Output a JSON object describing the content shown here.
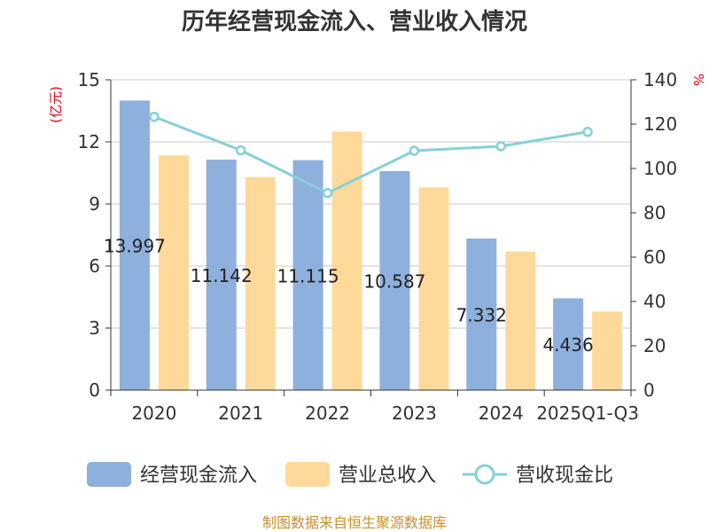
{
  "chart_data": {
    "type": "bar",
    "title": "历年经营现金流入、营业收入情况",
    "categories": [
      "2020",
      "2021",
      "2022",
      "2023",
      "2024",
      "2025Q1-Q3"
    ],
    "y_left": {
      "unit": "(亿元)",
      "range": [
        0,
        15
      ],
      "ticks": [
        "0",
        "3",
        "6",
        "9",
        "12",
        "15"
      ]
    },
    "y_right": {
      "unit": "%",
      "range": [
        0,
        140
      ],
      "ticks": [
        "0",
        "20",
        "40",
        "60",
        "80",
        "100",
        "120",
        "140"
      ]
    },
    "series": [
      {
        "name": "经营现金流入",
        "type": "bar",
        "axis": "left",
        "color": "#8eb0dc",
        "values": [
          13.997,
          11.142,
          11.115,
          10.587,
          7.332,
          4.436
        ],
        "labels": [
          "13.997",
          "11.142",
          "11.115",
          "10.587",
          "7.332",
          "4.436"
        ]
      },
      {
        "name": "营业总收入",
        "type": "bar",
        "axis": "left",
        "color": "#ffd99a",
        "values": [
          11.35,
          10.3,
          12.5,
          9.8,
          6.7,
          3.8
        ]
      },
      {
        "name": "营收现金比",
        "type": "line",
        "axis": "right",
        "color": "#86d0d8",
        "values": [
          123.3,
          108.2,
          88.9,
          108.0,
          110.0,
          116.5
        ]
      }
    ],
    "legend_position": "bottom",
    "grid": true
  },
  "footer": {
    "source": "制图数据来自恒生聚源数据库"
  }
}
